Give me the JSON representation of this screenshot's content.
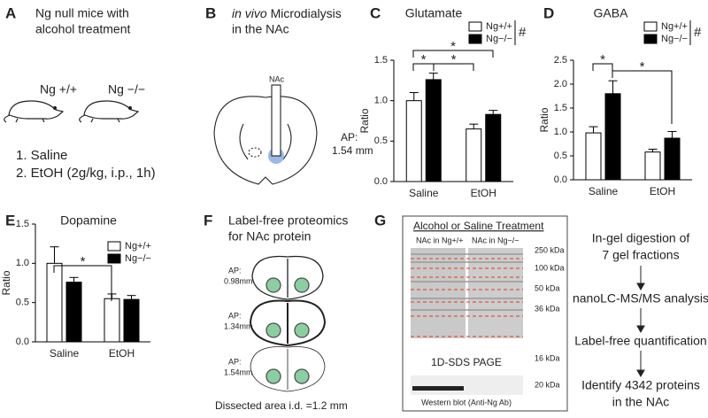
{
  "panels": {
    "A": {
      "label": "A",
      "title": [
        "Ng null mice with",
        "alcohol treatment"
      ],
      "genotypes": [
        "Ng +/+",
        "Ng −/−"
      ],
      "treatments": [
        "1. Saline",
        "2. EtOH (2g/kg, i.p., 1h)"
      ]
    },
    "B": {
      "label": "B",
      "title_italic": "in vivo",
      "title_rest": "Microdialysis",
      "title_line2": "in the NAc",
      "region": "NAc",
      "ap": [
        "AP:",
        "1.54 mm"
      ]
    },
    "F": {
      "label": "F",
      "title": [
        "Label-free proteomics",
        "for NAc protein"
      ],
      "sections": [
        [
          "AP:",
          "0.98mm"
        ],
        [
          "AP:",
          "1.34mm"
        ],
        [
          "AP:",
          "1.54mm"
        ]
      ],
      "caption": "Dissected area i.d. =1.2 mm"
    },
    "G": {
      "label": "G",
      "treatment": "Alcohol or Saline Treatment",
      "lanes": [
        "NAc in Ng+/+",
        "NAc in Ng−/−"
      ],
      "markers": [
        "250 kDa",
        "100 kDa",
        "50 kDa",
        "36 kDa",
        "20 kDa",
        "16 kDa"
      ],
      "gel": "1D-SDS PAGE",
      "blot": "Western blot (Anti-Ng Ab)",
      "steps": [
        [
          "In-gel digestion of",
          "7 gel fractions"
        ],
        [
          "nanoLC-MS/MS analysis"
        ],
        [
          "Label-free quantification"
        ],
        [
          "Identify 4342 proteins",
          "in the NAc"
        ]
      ]
    }
  },
  "chart_data": [
    {
      "type": "bar",
      "panel_label": "C",
      "title": "Glutamate",
      "y_label": "Ratio",
      "categories": [
        "Saline",
        "EtOH"
      ],
      "series": [
        {
          "name": "Ng+/+",
          "color": "#ffffff",
          "values": [
            1.0,
            0.65
          ],
          "errors": [
            0.1,
            0.06
          ]
        },
        {
          "name": "Ng−/−",
          "color": "#000000",
          "values": [
            1.26,
            0.83
          ],
          "errors": [
            0.08,
            0.05
          ]
        }
      ],
      "ylim": [
        0,
        1.5
      ],
      "yticks": [
        {
          "value": 0,
          "label": "0.0"
        },
        0.5,
        {
          "value": 1,
          "label": "1.0"
        },
        1.5
      ],
      "legend_note": "#",
      "significance": [
        "*",
        "*",
        "*"
      ]
    },
    {
      "type": "bar",
      "panel_label": "D",
      "title": "GABA",
      "y_label": "Ratio",
      "categories": [
        "Saline",
        "EtOH"
      ],
      "series": [
        {
          "name": "Ng+/+",
          "color": "#ffffff",
          "values": [
            0.98,
            0.58
          ],
          "errors": [
            0.13,
            0.06
          ]
        },
        {
          "name": "Ng−/−",
          "color": "#000000",
          "values": [
            1.8,
            0.87
          ],
          "errors": [
            0.27,
            0.14
          ]
        }
      ],
      "ylim": [
        0,
        2.5
      ],
      "yticks": [
        {
          "value": 0,
          "label": "0.0"
        },
        0.5,
        {
          "value": 1,
          "label": "1.0"
        },
        1.5,
        {
          "value": 2,
          "label": "2.0"
        },
        2.5
      ],
      "legend_note": "#",
      "significance": [
        "*",
        "*"
      ]
    },
    {
      "type": "bar",
      "panel_label": "E",
      "title": "Dopamine",
      "y_label": "Ratio",
      "categories": [
        "Saline",
        "EtOH"
      ],
      "series": [
        {
          "name": "Ng+/+",
          "color": "#ffffff",
          "values": [
            1.0,
            0.55
          ],
          "errors": [
            0.21,
            0.06
          ]
        },
        {
          "name": "Ng−/−",
          "color": "#000000",
          "values": [
            0.76,
            0.54
          ],
          "errors": [
            0.06,
            0.05
          ]
        }
      ],
      "ylim": [
        0,
        1.5
      ],
      "yticks": [
        {
          "value": 0,
          "label": "0.0"
        },
        0.5,
        {
          "value": 1,
          "label": "1.0"
        },
        1.5
      ],
      "significance": [
        "*"
      ]
    }
  ]
}
